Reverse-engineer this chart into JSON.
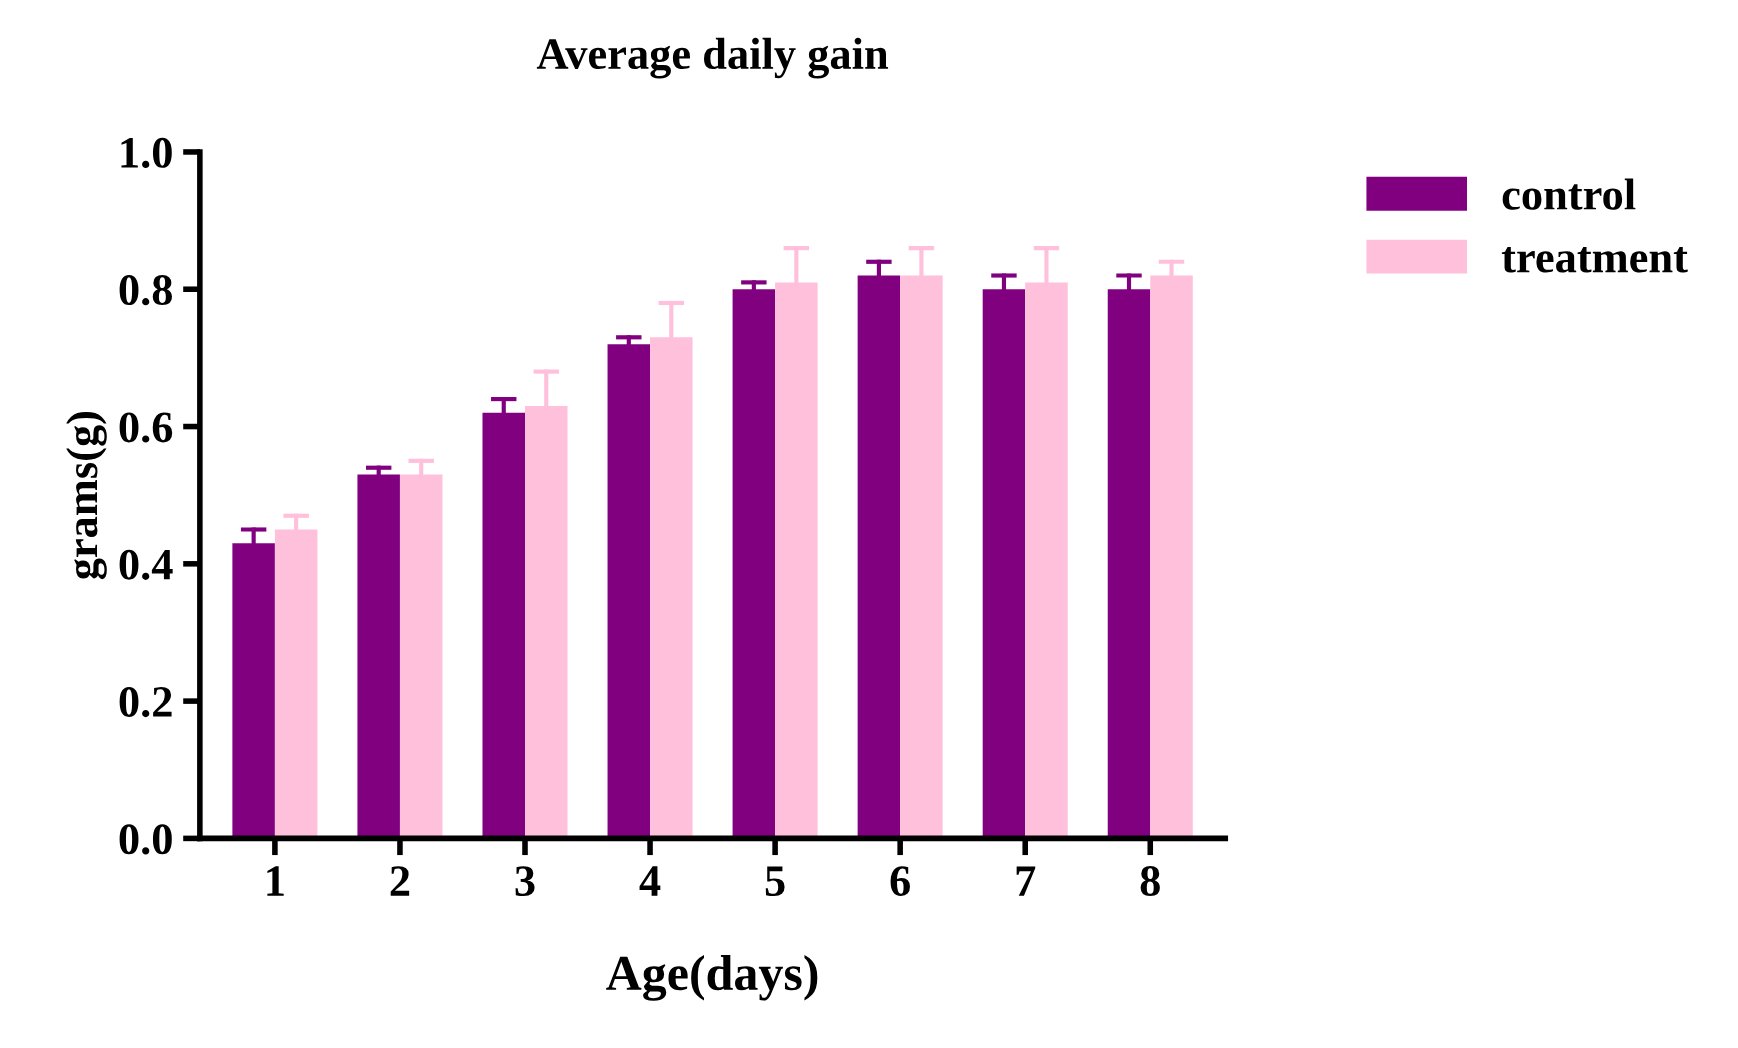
{
  "chart_data": {
    "type": "bar",
    "title": "Average daily gain",
    "xlabel": "Age(days)",
    "ylabel": "grams(g)",
    "categories": [
      "1",
      "2",
      "3",
      "4",
      "5",
      "6",
      "7",
      "8"
    ],
    "series": [
      {
        "name": "control",
        "color": "#800080",
        "values": [
          0.43,
          0.53,
          0.62,
          0.72,
          0.8,
          0.82,
          0.8,
          0.8
        ],
        "errors": [
          [
            0.43,
            0.45
          ],
          [
            0.53,
            0.54
          ],
          [
            0.62,
            0.64
          ],
          [
            0.72,
            0.73
          ],
          [
            0.8,
            0.81
          ],
          [
            0.82,
            0.84
          ],
          [
            0.8,
            0.82
          ],
          [
            0.8,
            0.82
          ]
        ]
      },
      {
        "name": "treatment",
        "color": "#ffc0dc",
        "values": [
          0.45,
          0.53,
          0.63,
          0.73,
          0.81,
          0.82,
          0.81,
          0.82
        ],
        "errors": [
          [
            0.45,
            0.47
          ],
          [
            0.53,
            0.55
          ],
          [
            0.63,
            0.68
          ],
          [
            0.73,
            0.78
          ],
          [
            0.81,
            0.86
          ],
          [
            0.82,
            0.86
          ],
          [
            0.81,
            0.86
          ],
          [
            0.82,
            0.84
          ]
        ]
      }
    ],
    "ylim": [
      0,
      1.0
    ],
    "yticks": [
      {
        "value": 0,
        "label": "0.0"
      },
      {
        "value": 0.2,
        "label": "0.2"
      },
      {
        "value": 0.4,
        "label": "0.4"
      },
      {
        "value": 0.6,
        "label": "0.6"
      },
      {
        "value": 0.8,
        "label": "0.8"
      },
      {
        "value": 1.0,
        "label": "1.0"
      }
    ],
    "grid": false,
    "legend": "top right"
  }
}
